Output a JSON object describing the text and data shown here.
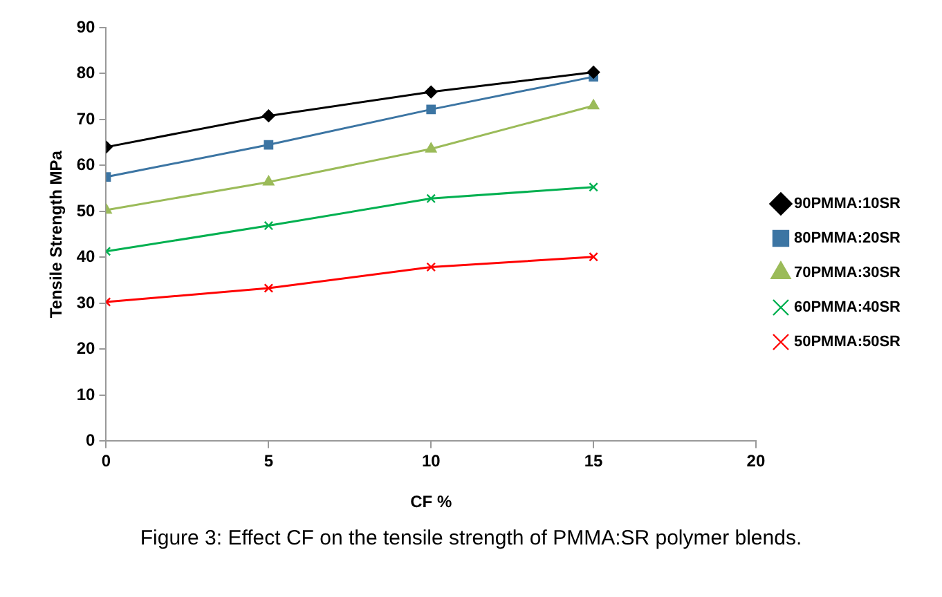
{
  "chart_data": {
    "type": "line",
    "xlabel": "CF %",
    "ylabel": "Tensile Strength MPa",
    "x": [
      0,
      5,
      10,
      15
    ],
    "series": [
      {
        "name": "90PMMA:10SR",
        "color": "#000000",
        "marker": "diamond",
        "values": [
          64,
          70.8,
          76,
          80.3
        ]
      },
      {
        "name": "80PMMA:20SR",
        "color": "#3c75a3",
        "marker": "square",
        "values": [
          57.5,
          64.5,
          72.2,
          79.3
        ]
      },
      {
        "name": "70PMMA:30SR",
        "color": "#9bbb59",
        "marker": "triangle",
        "values": [
          50.3,
          56.4,
          63.6,
          73
        ]
      },
      {
        "name": "60PMMA:40SR",
        "color": "#00b050",
        "marker": "cross",
        "values": [
          41.3,
          46.9,
          52.8,
          55.3
        ]
      },
      {
        "name": "50PMMA:50SR",
        "color": "#ff0000",
        "marker": "cross",
        "values": [
          30.3,
          33.3,
          37.9,
          40.1
        ]
      }
    ],
    "xlim": [
      0,
      20
    ],
    "xticks": [
      0,
      5,
      10,
      15,
      20
    ],
    "ylim": [
      0,
      90
    ],
    "yticks": [
      0,
      10,
      20,
      30,
      40,
      50,
      60,
      70,
      80,
      90
    ],
    "grid": false,
    "legend": "right",
    "annotations": [
      "Figure 3: Effect CF on the tensile strength of PMMA:SR polymer blends."
    ]
  }
}
